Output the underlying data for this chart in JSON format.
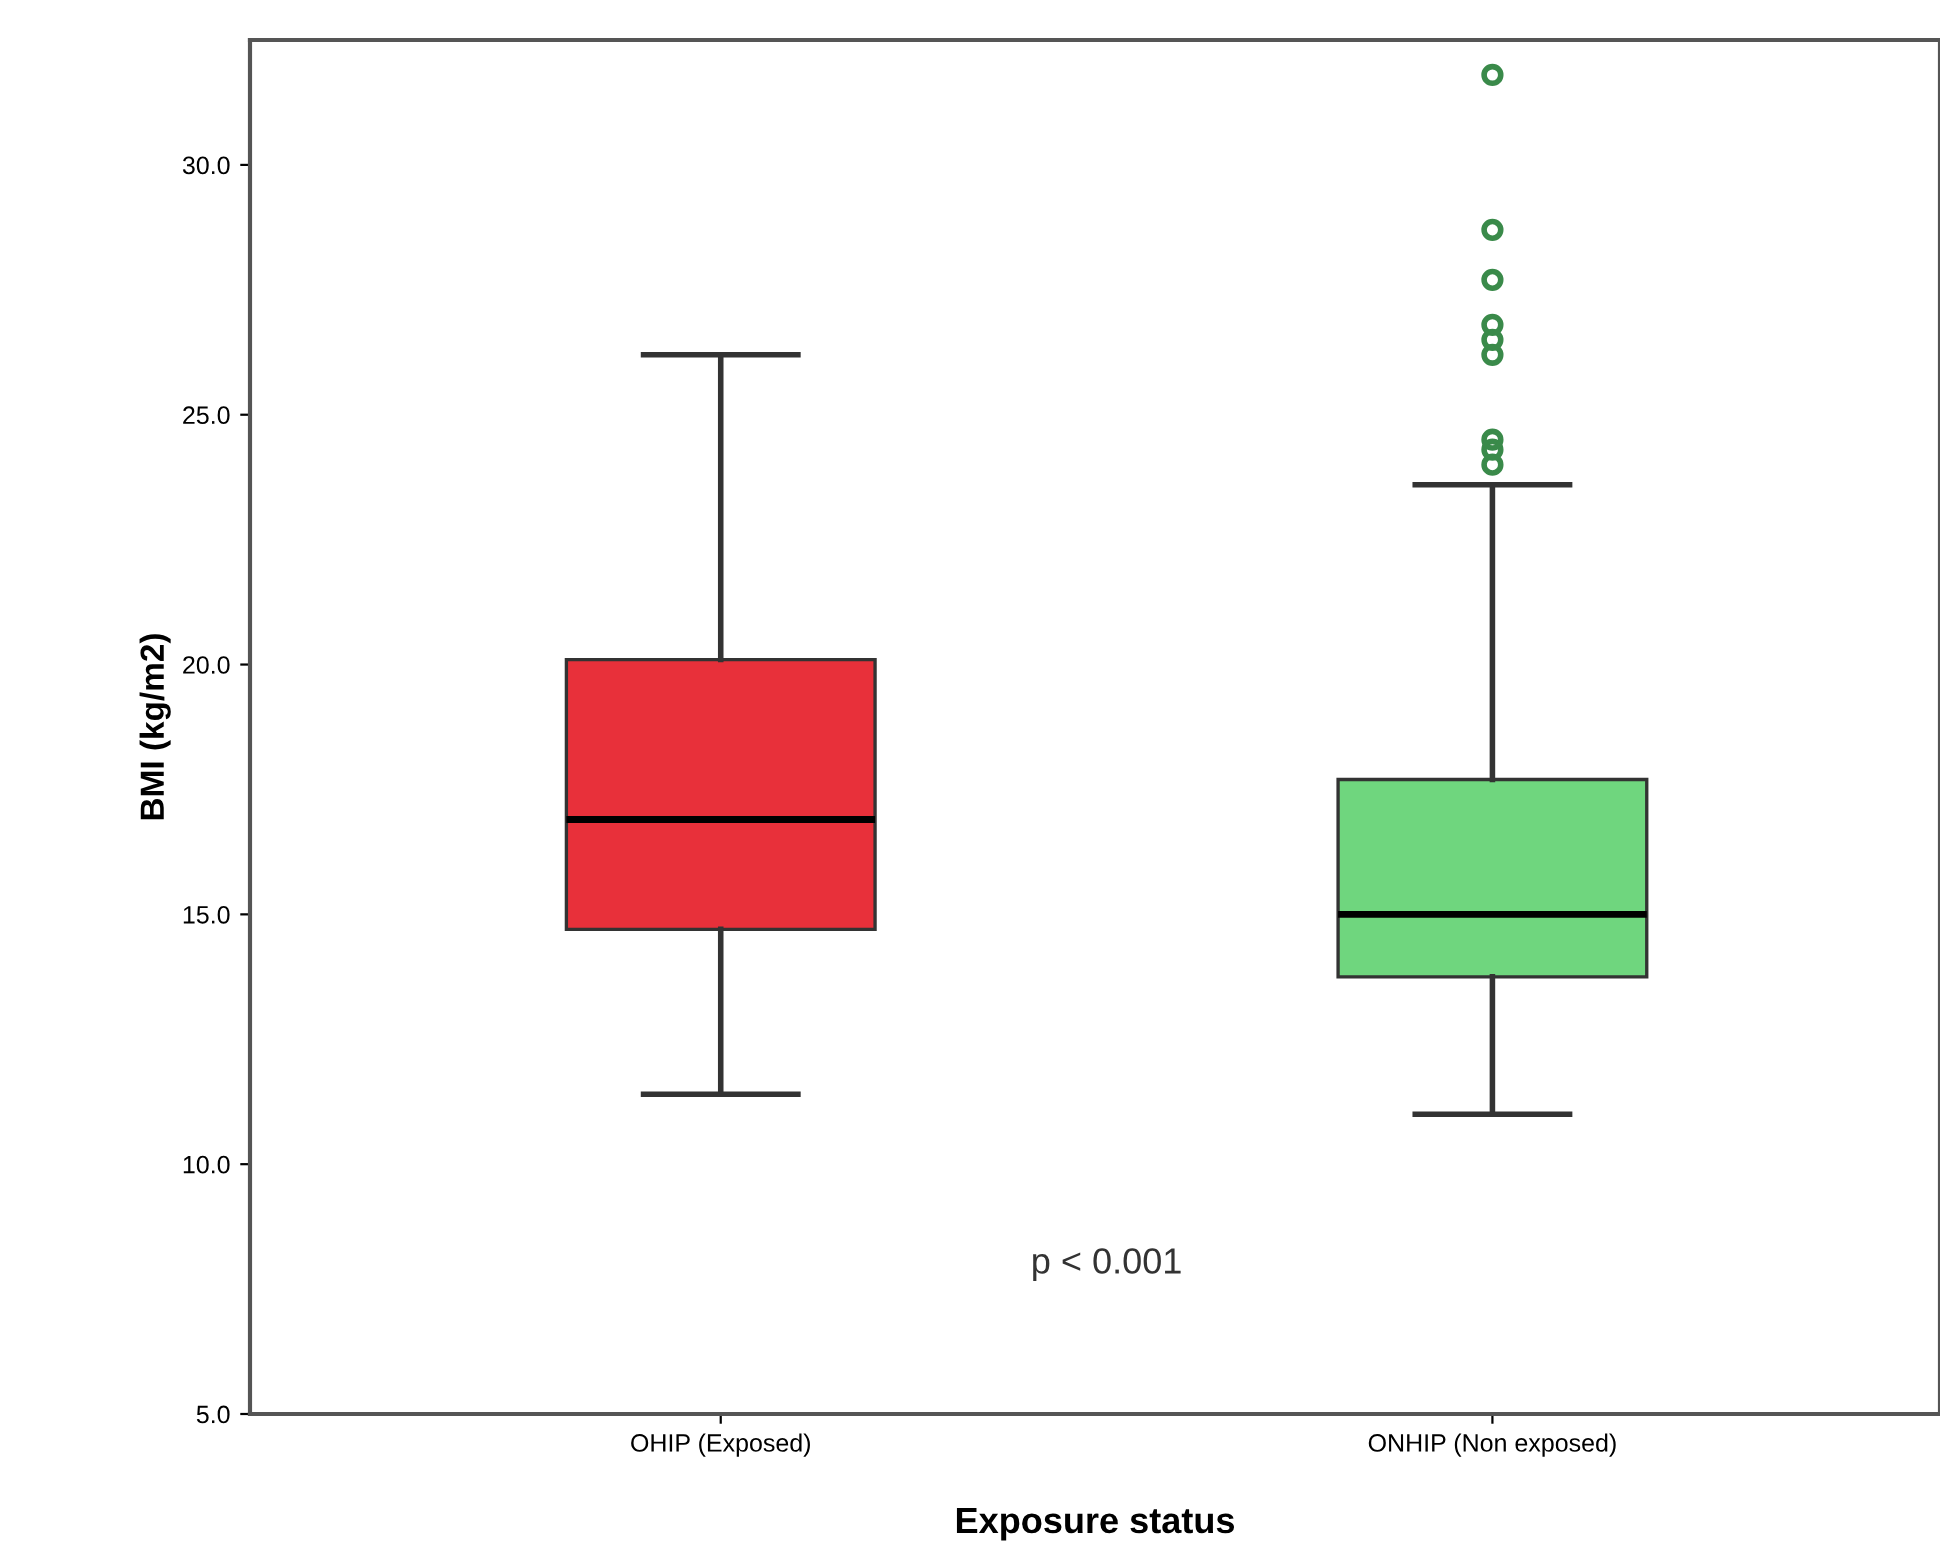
{
  "chart_data": {
    "type": "box",
    "xlabel": "Exposure status",
    "ylabel": "BMI (kg/m2)",
    "categories": [
      "OHIP (Exposed)",
      "ONHIP (Non exposed)"
    ],
    "colors": [
      "#e8303a",
      "#6fd67e"
    ],
    "boxes": [
      {
        "low": 11.4,
        "q1": 14.7,
        "median": 16.9,
        "q3": 20.1,
        "high": 26.2
      },
      {
        "low": 11.0,
        "q1": 13.75,
        "median": 15.0,
        "q3": 17.7,
        "high": 23.6,
        "outliers": [
          24.0,
          24.3,
          24.5,
          26.2,
          26.5,
          26.8,
          27.7,
          28.7,
          31.8
        ]
      }
    ],
    "ylim": [
      5,
      32.5
    ],
    "yticks": [
      {
        "value": 5,
        "label": "5.0"
      },
      {
        "value": 10,
        "label": "10.0"
      },
      {
        "value": 15,
        "label": "15.0"
      },
      {
        "value": 20,
        "label": "20.0"
      },
      {
        "value": 25,
        "label": "25.0"
      },
      {
        "value": 30,
        "label": "30.0"
      }
    ],
    "annotations": [
      "p < 0.001"
    ],
    "grid": false
  }
}
